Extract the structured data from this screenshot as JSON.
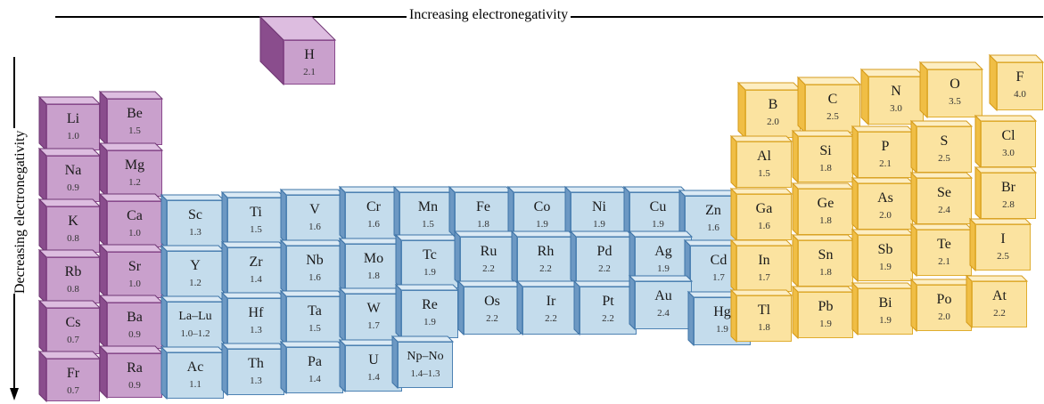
{
  "axes": {
    "top_label": "Increasing electronegativity",
    "left_label": "Decreasing electronegativity"
  },
  "colors": {
    "s_block": "#c9a0cc",
    "d_block": "#c4dcec",
    "p_block": "#fbe3a0"
  },
  "elements": [
    {
      "symbol": "H",
      "value": "2.1",
      "group": "purple"
    },
    {
      "symbol": "Li",
      "value": "1.0",
      "group": "purple"
    },
    {
      "symbol": "Be",
      "value": "1.5",
      "group": "purple"
    },
    {
      "symbol": "Na",
      "value": "0.9",
      "group": "purple"
    },
    {
      "symbol": "Mg",
      "value": "1.2",
      "group": "purple"
    },
    {
      "symbol": "K",
      "value": "0.8",
      "group": "purple"
    },
    {
      "symbol": "Ca",
      "value": "1.0",
      "group": "purple"
    },
    {
      "symbol": "Rb",
      "value": "0.8",
      "group": "purple"
    },
    {
      "symbol": "Sr",
      "value": "1.0",
      "group": "purple"
    },
    {
      "symbol": "Cs",
      "value": "0.7",
      "group": "purple"
    },
    {
      "symbol": "Ba",
      "value": "0.9",
      "group": "purple"
    },
    {
      "symbol": "Fr",
      "value": "0.7",
      "group": "purple"
    },
    {
      "symbol": "Ra",
      "value": "0.9",
      "group": "purple"
    },
    {
      "symbol": "Sc",
      "value": "1.3",
      "group": "blue"
    },
    {
      "symbol": "Ti",
      "value": "1.5",
      "group": "blue"
    },
    {
      "symbol": "V",
      "value": "1.6",
      "group": "blue"
    },
    {
      "symbol": "Cr",
      "value": "1.6",
      "group": "blue"
    },
    {
      "symbol": "Mn",
      "value": "1.5",
      "group": "blue"
    },
    {
      "symbol": "Fe",
      "value": "1.8",
      "group": "blue"
    },
    {
      "symbol": "Co",
      "value": "1.9",
      "group": "blue"
    },
    {
      "symbol": "Ni",
      "value": "1.9",
      "group": "blue"
    },
    {
      "symbol": "Cu",
      "value": "1.9",
      "group": "blue"
    },
    {
      "symbol": "Zn",
      "value": "1.6",
      "group": "blue"
    },
    {
      "symbol": "Y",
      "value": "1.2",
      "group": "blue"
    },
    {
      "symbol": "Zr",
      "value": "1.4",
      "group": "blue"
    },
    {
      "symbol": "Nb",
      "value": "1.6",
      "group": "blue"
    },
    {
      "symbol": "Mo",
      "value": "1.8",
      "group": "blue"
    },
    {
      "symbol": "Tc",
      "value": "1.9",
      "group": "blue"
    },
    {
      "symbol": "Ru",
      "value": "2.2",
      "group": "blue"
    },
    {
      "symbol": "Rh",
      "value": "2.2",
      "group": "blue"
    },
    {
      "symbol": "Pd",
      "value": "2.2",
      "group": "blue"
    },
    {
      "symbol": "Ag",
      "value": "1.9",
      "group": "blue"
    },
    {
      "symbol": "Cd",
      "value": "1.7",
      "group": "blue"
    },
    {
      "symbol": "La–Lu",
      "value": "1.0–1.2",
      "group": "blue"
    },
    {
      "symbol": "Hf",
      "value": "1.3",
      "group": "blue"
    },
    {
      "symbol": "Ta",
      "value": "1.5",
      "group": "blue"
    },
    {
      "symbol": "W",
      "value": "1.7",
      "group": "blue"
    },
    {
      "symbol": "Re",
      "value": "1.9",
      "group": "blue"
    },
    {
      "symbol": "Os",
      "value": "2.2",
      "group": "blue"
    },
    {
      "symbol": "Ir",
      "value": "2.2",
      "group": "blue"
    },
    {
      "symbol": "Pt",
      "value": "2.2",
      "group": "blue"
    },
    {
      "symbol": "Au",
      "value": "2.4",
      "group": "blue"
    },
    {
      "symbol": "Hg",
      "value": "1.9",
      "group": "blue"
    },
    {
      "symbol": "Ac",
      "value": "1.1",
      "group": "blue"
    },
    {
      "symbol": "Th",
      "value": "1.3",
      "group": "blue"
    },
    {
      "symbol": "Pa",
      "value": "1.4",
      "group": "blue"
    },
    {
      "symbol": "U",
      "value": "1.4",
      "group": "blue"
    },
    {
      "symbol": "Np–No",
      "value": "1.4–1.3",
      "group": "blue"
    },
    {
      "symbol": "B",
      "value": "2.0",
      "group": "yellow"
    },
    {
      "symbol": "C",
      "value": "2.5",
      "group": "yellow"
    },
    {
      "symbol": "N",
      "value": "3.0",
      "group": "yellow"
    },
    {
      "symbol": "O",
      "value": "3.5",
      "group": "yellow"
    },
    {
      "symbol": "F",
      "value": "4.0",
      "group": "yellow"
    },
    {
      "symbol": "Al",
      "value": "1.5",
      "group": "yellow"
    },
    {
      "symbol": "Si",
      "value": "1.8",
      "group": "yellow"
    },
    {
      "symbol": "P",
      "value": "2.1",
      "group": "yellow"
    },
    {
      "symbol": "S",
      "value": "2.5",
      "group": "yellow"
    },
    {
      "symbol": "Cl",
      "value": "3.0",
      "group": "yellow"
    },
    {
      "symbol": "Ga",
      "value": "1.6",
      "group": "yellow"
    },
    {
      "symbol": "Ge",
      "value": "1.8",
      "group": "yellow"
    },
    {
      "symbol": "As",
      "value": "2.0",
      "group": "yellow"
    },
    {
      "symbol": "Se",
      "value": "2.4",
      "group": "yellow"
    },
    {
      "symbol": "Br",
      "value": "2.8",
      "group": "yellow"
    },
    {
      "symbol": "In",
      "value": "1.7",
      "group": "yellow"
    },
    {
      "symbol": "Sn",
      "value": "1.8",
      "group": "yellow"
    },
    {
      "symbol": "Sb",
      "value": "1.9",
      "group": "yellow"
    },
    {
      "symbol": "Te",
      "value": "2.1",
      "group": "yellow"
    },
    {
      "symbol": "I",
      "value": "2.5",
      "group": "yellow"
    },
    {
      "symbol": "Tl",
      "value": "1.8",
      "group": "yellow"
    },
    {
      "symbol": "Pb",
      "value": "1.9",
      "group": "yellow"
    },
    {
      "symbol": "Bi",
      "value": "1.9",
      "group": "yellow"
    },
    {
      "symbol": "Po",
      "value": "2.0",
      "group": "yellow"
    },
    {
      "symbol": "At",
      "value": "2.2",
      "group": "yellow"
    }
  ]
}
